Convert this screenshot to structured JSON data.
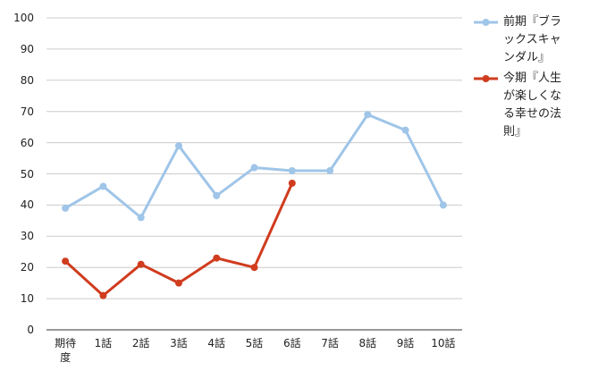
{
  "chart_data": {
    "type": "line",
    "categories": [
      "期待度",
      "1話",
      "2話",
      "3話",
      "4話",
      "5話",
      "6話",
      "7話",
      "8話",
      "9話",
      "10話"
    ],
    "series": [
      {
        "name": "前期『ブラックスキャンダル』",
        "color": "#9fc5e8",
        "values": [
          39,
          46,
          36,
          59,
          43,
          52,
          51,
          51,
          69,
          64,
          40
        ]
      },
      {
        "name": "今期『人生が楽しくなる幸せの法則』",
        "color": "#d03c1e",
        "values": [
          22,
          11,
          21,
          15,
          23,
          20,
          47,
          null,
          null,
          null,
          null
        ]
      }
    ],
    "ylim": [
      0,
      100
    ],
    "yticks": [
      0,
      10,
      20,
      30,
      40,
      50,
      60,
      70,
      80,
      90,
      100
    ],
    "grid": true,
    "legend": "right"
  }
}
